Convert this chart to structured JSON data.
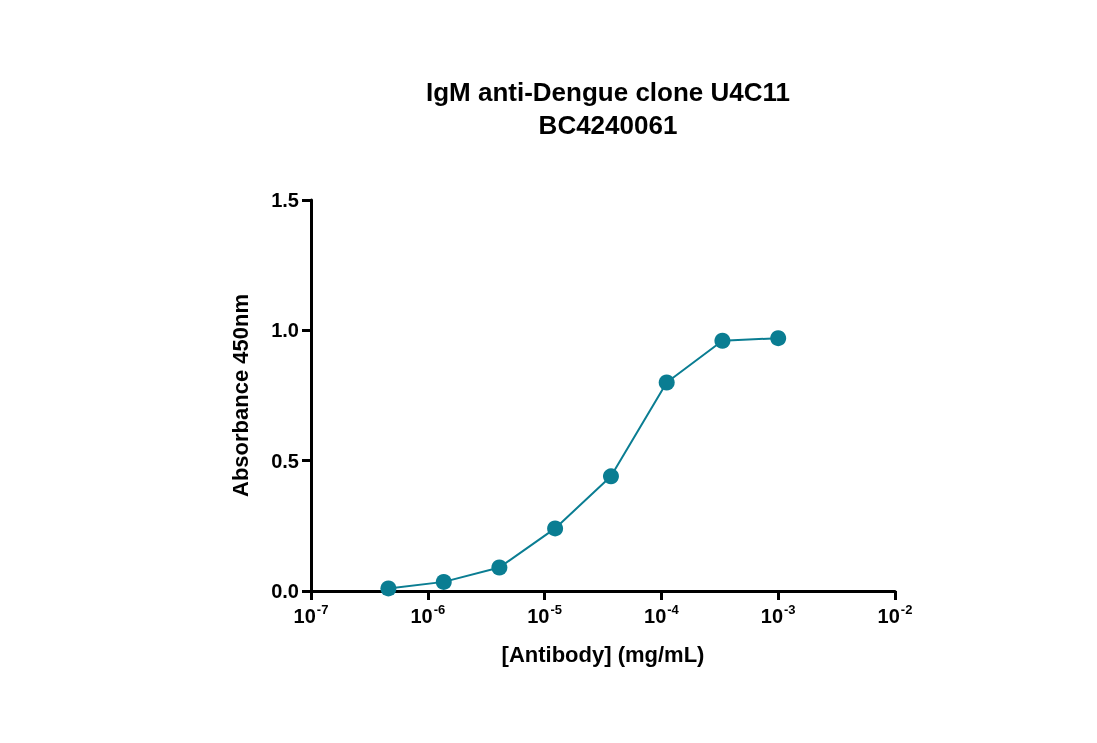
{
  "chart_data": {
    "type": "line",
    "title": "IgM anti-Dengue clone U4C11\nBC4240061",
    "xlabel": "[Antibody] (mg/mL)",
    "ylabel": "Absorbance 450nm",
    "x": [
      4.6e-07,
      1.37e-06,
      4.1e-06,
      1.23e-05,
      3.7e-05,
      0.000111,
      0.000333,
      0.001
    ],
    "series": [
      {
        "color": "#0a7d92",
        "values": [
          0.01,
          0.035,
          0.09,
          0.24,
          0.44,
          0.8,
          0.96,
          0.97
        ]
      }
    ],
    "log": "x",
    "xlim": [
      1e-07,
      0.01
    ],
    "xticks": [
      {
        "value": 1e-07,
        "label": "10$^{-7}$"
      },
      {
        "value": 1e-06,
        "label": "10$^{-6}$"
      },
      {
        "value": 1e-05,
        "label": "10$^{-5}$"
      },
      {
        "value": 0.0001,
        "label": "10$^{-4}$"
      },
      {
        "value": 0.001,
        "label": "10$^{-3}$"
      },
      {
        "value": 0.01,
        "label": "10$^{-2}$"
      }
    ],
    "ylim": [
      0,
      1.5
    ],
    "yticks": [
      {
        "value": 0,
        "label": "0.0"
      },
      {
        "value": 0.5,
        "label": "0.5"
      },
      {
        "value": 1,
        "label": "1.0"
      },
      {
        "value": 1.5,
        "label": "1.5"
      }
    ],
    "grid": false,
    "marker": "circle",
    "line_style": "solid"
  }
}
